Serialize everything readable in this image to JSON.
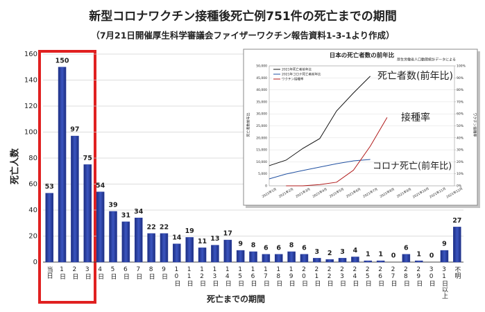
{
  "chart_data": [
    {
      "type": "bar",
      "title": "新型コロナワクチン接種後死亡例751件の死亡までの期間",
      "subtitle": "（7月21日開催厚生科学審議会ファイザーワクチン報告資料1-3-1より作成）",
      "y_label": "死亡人数",
      "x_label": "死亡までの期間",
      "categories": [
        "当日",
        "1日",
        "2日",
        "3日",
        "4日",
        "5日",
        "6日",
        "7日",
        "8日",
        "9日",
        "10日",
        "11日",
        "12日",
        "13日",
        "14日",
        "15日",
        "16日",
        "17日",
        "18日",
        "19日",
        "20日",
        "21日",
        "22日",
        "23日",
        "24日",
        "25日",
        "26日",
        "27日",
        "28日",
        "29日",
        "30日",
        "31日以上",
        "不明"
      ],
      "values": [
        53,
        150,
        97,
        75,
        54,
        39,
        31,
        34,
        22,
        22,
        14,
        19,
        11,
        13,
        17,
        9,
        8,
        6,
        6,
        8,
        6,
        3,
        2,
        3,
        4,
        1,
        1,
        0,
        6,
        1,
        0,
        9,
        27
      ],
      "color": "#2b3f9f",
      "ylim": [
        0,
        160
      ],
      "yticks": [
        0,
        20,
        40,
        60,
        80,
        100,
        120,
        140,
        160
      ],
      "grid": true
    },
    {
      "type": "line",
      "title": "日本の死亡者数の前年比",
      "note": "厚生労働省人口動態統計データによる",
      "y_label": "死亡者数前年比",
      "y2_label": "ワクチン接種率",
      "categories": [
        "2021年1月",
        "2021年2月",
        "2021年3月",
        "2021年4月",
        "2021年5月",
        "2021年6月",
        "2021年7月",
        "2021年8月",
        "2021年9月",
        "2021年10月",
        "2021年11月",
        "2021年12月"
      ],
      "series": [
        {
          "name": "2021年死亡者前年比",
          "color": "#111111",
          "values": [
            8400,
            10700,
            15600,
            19700,
            31200,
            38700,
            45700,
            null,
            null,
            null,
            null,
            null
          ]
        },
        {
          "name": "2021年コロナ死亡者前年比",
          "color": "#1f4fa0",
          "values": [
            2900,
            4900,
            6400,
            7800,
            9200,
            10400,
            11000,
            null,
            null,
            null,
            null,
            null
          ]
        },
        {
          "name": "ワクチン接種率",
          "color": "#b01818",
          "axis": "y2",
          "values": [
            null,
            0,
            0,
            1,
            3,
            13,
            33,
            57,
            null,
            null,
            null,
            null
          ]
        }
      ],
      "ylim": [
        0,
        50000
      ],
      "yticks": [
        0,
        {
          "value": 5000,
          "label": "5,000"
        },
        {
          "value": 10000,
          "label": "10,000"
        },
        {
          "value": 15000,
          "label": "15,000"
        },
        {
          "value": 20000,
          "label": "20,000"
        },
        {
          "value": 25000,
          "label": "25,000"
        },
        {
          "value": 30000,
          "label": "30,000"
        },
        {
          "value": 35000,
          "label": "35,000"
        },
        {
          "value": 40000,
          "label": "40,000"
        },
        {
          "value": 45000,
          "label": "45,000"
        },
        {
          "value": 50000,
          "label": "50,000"
        }
      ],
      "y2lim": [
        0,
        100
      ],
      "y2ticks": [
        {
          "value": 0,
          "label": "0%"
        },
        {
          "value": 10,
          "label": "10%"
        },
        {
          "value": 20,
          "label": "20%"
        },
        {
          "value": 30,
          "label": "30%"
        },
        {
          "value": 40,
          "label": "40%"
        },
        {
          "value": 50,
          "label": "50%"
        },
        {
          "value": 60,
          "label": "60%"
        },
        {
          "value": 70,
          "label": "70%"
        },
        {
          "value": 80,
          "label": "80%"
        },
        {
          "value": 90,
          "label": "90%"
        },
        {
          "value": 100,
          "label": "100%"
        }
      ],
      "grid": true,
      "legend": "top-left",
      "annotations": [
        {
          "text": "死亡者数(前年比)",
          "color": "#111111"
        },
        {
          "text": "接種率",
          "color": "#b01818"
        },
        {
          "text": "コロナ死亡(前年比)",
          "color": "#1f6fb5"
        }
      ]
    }
  ]
}
